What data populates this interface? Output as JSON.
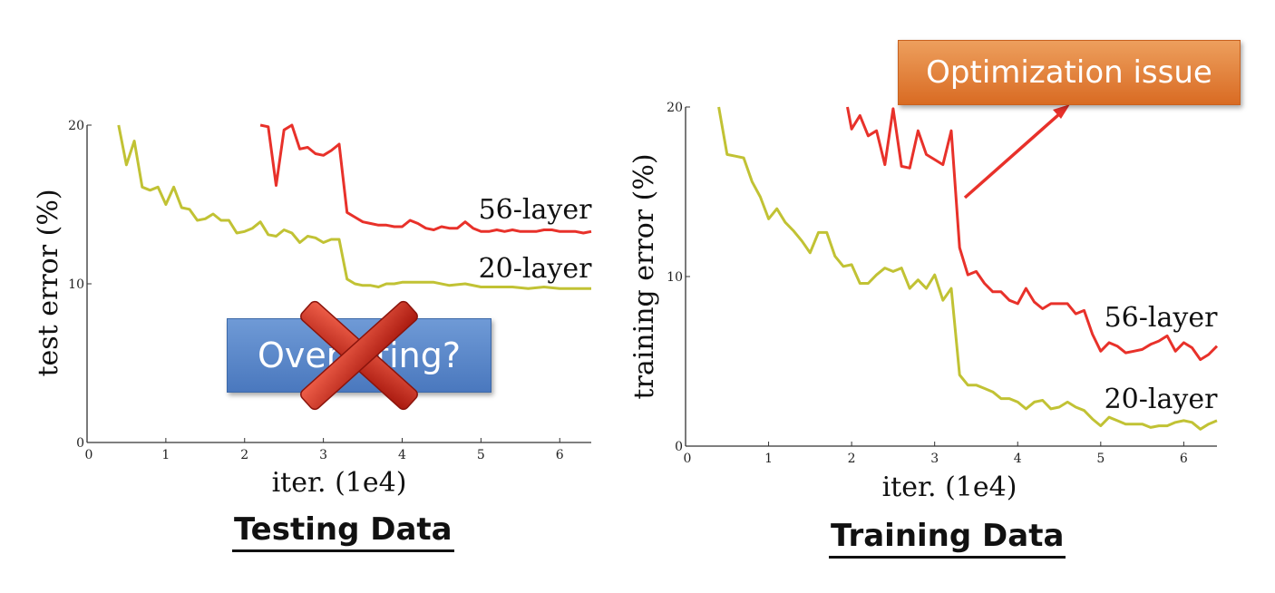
{
  "chart_data": [
    {
      "type": "line",
      "title": "Testing Data",
      "xlabel": "iter. (1e4)",
      "ylabel": "test error (%)",
      "xlim": [
        0,
        6.4
      ],
      "ylim": [
        0,
        20
      ],
      "xticks": [
        0,
        1,
        2,
        3,
        4,
        5,
        6
      ],
      "yticks": [
        0,
        10,
        20
      ],
      "series": [
        {
          "name": "56-layer",
          "color": "#e8312a",
          "x": [
            2.2,
            2.3,
            2.4,
            2.5,
            2.6,
            2.7,
            2.8,
            2.9,
            3.0,
            3.1,
            3.2,
            3.3,
            3.4,
            3.5,
            3.6,
            3.7,
            3.8,
            3.9,
            4.0,
            4.1,
            4.2,
            4.3,
            4.4,
            4.5,
            4.6,
            4.7,
            4.8,
            4.9,
            5.0,
            5.1,
            5.2,
            5.3,
            5.4,
            5.5,
            5.6,
            5.7,
            5.8,
            5.9,
            6.0,
            6.1,
            6.2,
            6.3,
            6.4
          ],
          "y": [
            20.0,
            19.9,
            16.2,
            19.7,
            20.0,
            18.5,
            18.6,
            18.2,
            18.1,
            18.4,
            18.8,
            14.5,
            14.2,
            13.9,
            13.8,
            13.7,
            13.7,
            13.6,
            13.6,
            14.0,
            13.8,
            13.5,
            13.4,
            13.6,
            13.5,
            13.5,
            13.9,
            13.5,
            13.3,
            13.3,
            13.4,
            13.3,
            13.4,
            13.3,
            13.3,
            13.3,
            13.4,
            13.4,
            13.3,
            13.3,
            13.3,
            13.2,
            13.3
          ]
        },
        {
          "name": "20-layer",
          "color": "#c1c234",
          "x": [
            0.4,
            0.5,
            0.6,
            0.7,
            0.8,
            0.9,
            1.0,
            1.1,
            1.2,
            1.3,
            1.4,
            1.5,
            1.6,
            1.7,
            1.8,
            1.9,
            2.0,
            2.1,
            2.2,
            2.3,
            2.4,
            2.5,
            2.6,
            2.7,
            2.8,
            2.9,
            3.0,
            3.1,
            3.2,
            3.3,
            3.4,
            3.5,
            3.6,
            3.7,
            3.8,
            3.9,
            4.0,
            4.2,
            4.4,
            4.6,
            4.8,
            5.0,
            5.2,
            5.4,
            5.6,
            5.8,
            6.0,
            6.2,
            6.4
          ],
          "y": [
            20.0,
            17.5,
            19.0,
            16.1,
            15.9,
            16.1,
            15.0,
            16.1,
            14.8,
            14.7,
            14.0,
            14.1,
            14.4,
            14.0,
            14.0,
            13.2,
            13.3,
            13.5,
            13.9,
            13.1,
            13.0,
            13.4,
            13.2,
            12.6,
            13.0,
            12.9,
            12.6,
            12.8,
            12.8,
            10.3,
            10.0,
            9.9,
            9.9,
            9.8,
            10.0,
            10.0,
            10.1,
            10.1,
            10.1,
            9.9,
            10.0,
            9.8,
            9.8,
            9.8,
            9.7,
            9.8,
            9.7,
            9.7,
            9.7
          ]
        }
      ],
      "annotations": [
        "56-layer",
        "20-layer"
      ],
      "overlay_label": "Overfitting?"
    },
    {
      "type": "line",
      "title": "Training Data",
      "xlabel": "iter. (1e4)",
      "ylabel": "training error (%)",
      "xlim": [
        0,
        6.4
      ],
      "ylim": [
        0,
        20
      ],
      "xticks": [
        0,
        1,
        2,
        3,
        4,
        5,
        6
      ],
      "yticks": [
        0,
        10,
        20
      ],
      "series": [
        {
          "name": "56-layer",
          "color": "#e8312a",
          "x": [
            1.95,
            2.0,
            2.1,
            2.2,
            2.3,
            2.4,
            2.5,
            2.6,
            2.7,
            2.8,
            2.9,
            3.0,
            3.1,
            3.2,
            3.3,
            3.4,
            3.5,
            3.6,
            3.7,
            3.8,
            3.9,
            4.0,
            4.1,
            4.2,
            4.3,
            4.4,
            4.5,
            4.6,
            4.7,
            4.8,
            4.9,
            5.0,
            5.1,
            5.2,
            5.3,
            5.4,
            5.5,
            5.6,
            5.7,
            5.8,
            5.9,
            6.0,
            6.1,
            6.2,
            6.3,
            6.4
          ],
          "y": [
            20.0,
            18.7,
            19.5,
            18.3,
            18.6,
            16.6,
            19.9,
            16.5,
            16.4,
            18.6,
            17.2,
            16.9,
            16.6,
            18.6,
            11.7,
            10.1,
            10.3,
            9.6,
            9.1,
            9.1,
            8.6,
            8.4,
            9.3,
            8.5,
            8.1,
            8.4,
            8.4,
            8.4,
            7.8,
            8.0,
            6.6,
            5.6,
            6.1,
            5.9,
            5.5,
            5.6,
            5.7,
            6.0,
            6.2,
            6.5,
            5.6,
            6.1,
            5.8,
            5.1,
            5.4,
            5.9
          ]
        },
        {
          "name": "20-layer",
          "color": "#c1c234",
          "x": [
            0.4,
            0.5,
            0.6,
            0.7,
            0.8,
            0.9,
            1.0,
            1.1,
            1.2,
            1.3,
            1.4,
            1.5,
            1.6,
            1.7,
            1.8,
            1.9,
            2.0,
            2.1,
            2.2,
            2.3,
            2.4,
            2.5,
            2.6,
            2.7,
            2.8,
            2.9,
            3.0,
            3.1,
            3.2,
            3.3,
            3.4,
            3.5,
            3.6,
            3.7,
            3.8,
            3.9,
            4.0,
            4.1,
            4.2,
            4.3,
            4.4,
            4.5,
            4.6,
            4.7,
            4.8,
            4.9,
            5.0,
            5.1,
            5.2,
            5.3,
            5.4,
            5.5,
            5.6,
            5.7,
            5.8,
            5.9,
            6.0,
            6.1,
            6.2,
            6.3,
            6.4
          ],
          "y": [
            20.0,
            17.2,
            17.1,
            17.0,
            15.6,
            14.7,
            13.4,
            14.0,
            13.2,
            12.7,
            12.1,
            11.4,
            12.6,
            12.6,
            11.2,
            10.6,
            10.7,
            9.6,
            9.6,
            10.1,
            10.5,
            10.3,
            10.5,
            9.3,
            9.8,
            9.3,
            10.1,
            8.6,
            9.3,
            4.2,
            3.6,
            3.6,
            3.4,
            3.2,
            2.8,
            2.8,
            2.6,
            2.2,
            2.6,
            2.7,
            2.2,
            2.3,
            2.6,
            2.3,
            2.1,
            1.6,
            1.2,
            1.7,
            1.5,
            1.3,
            1.3,
            1.3,
            1.1,
            1.2,
            1.2,
            1.4,
            1.5,
            1.4,
            1.0,
            1.3,
            1.5
          ]
        }
      ],
      "annotations": [
        "56-layer",
        "20-layer"
      ],
      "overlay_label": "Optimization issue"
    }
  ]
}
